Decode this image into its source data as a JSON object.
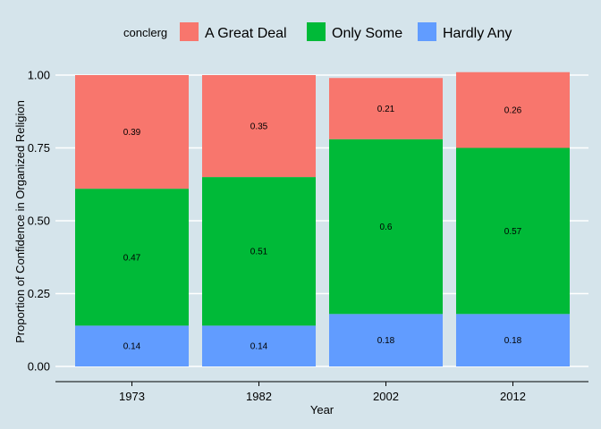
{
  "chart_data": {
    "type": "bar",
    "stacked": true,
    "categories": [
      "1973",
      "1982",
      "2002",
      "2012"
    ],
    "series": [
      {
        "name": "Hardly Any",
        "color": "#619cff",
        "values": [
          0.14,
          0.14,
          0.18,
          0.18
        ]
      },
      {
        "name": "Only Some",
        "color": "#00ba38",
        "values": [
          0.47,
          0.51,
          0.6,
          0.57
        ]
      },
      {
        "name": "A Great Deal",
        "color": "#f8766d",
        "values": [
          0.39,
          0.35,
          0.21,
          0.26
        ]
      }
    ],
    "legend": {
      "title": "conclerg",
      "position": "top",
      "order": [
        "A Great Deal",
        "Only Some",
        "Hardly Any"
      ]
    },
    "xlabel": "Year",
    "ylabel": "Proportion of Confidence in Organized Religion",
    "ylim": [
      0,
      1
    ],
    "yticks": [
      "0.00",
      "0.25",
      "0.50",
      "0.75",
      "1.00"
    ],
    "grid": "horizontal",
    "background": "#d5e4eb"
  }
}
